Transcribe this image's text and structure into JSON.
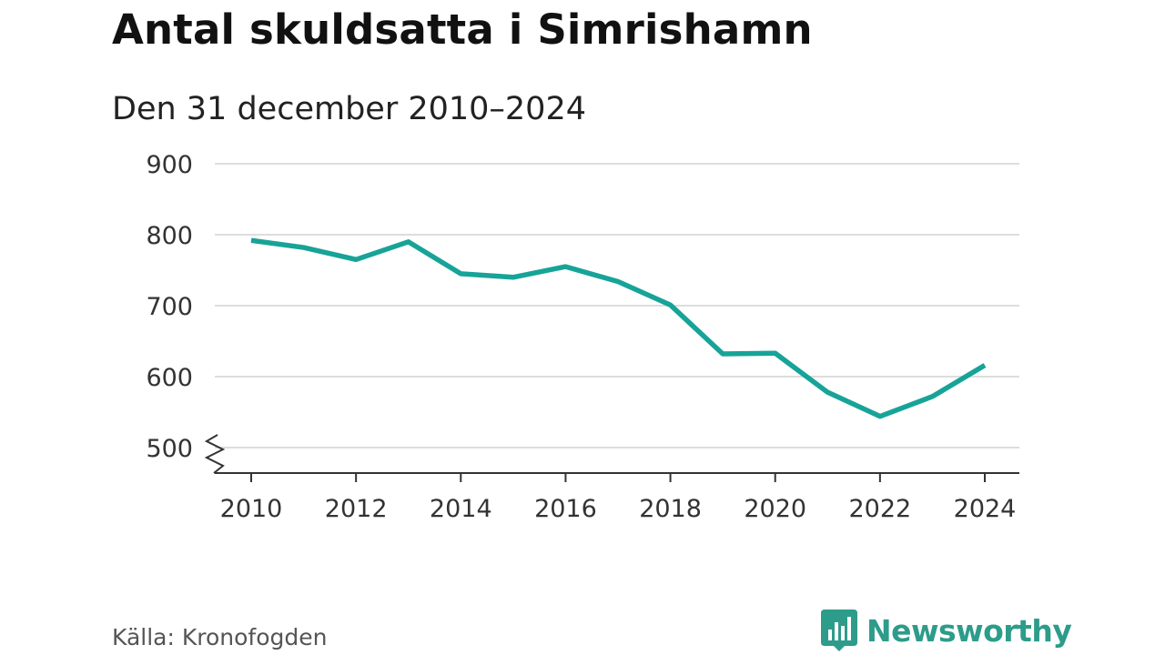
{
  "header": {
    "title": "Antal skuldsatta i Simrishamn",
    "subtitle": "Den 31 december 2010–2024"
  },
  "chart_data": {
    "type": "line",
    "title": "Antal skuldsatta i Simrishamn",
    "subtitle": "Den 31 december 2010–2024",
    "xlabel": "",
    "ylabel": "",
    "x": [
      2010,
      2011,
      2012,
      2013,
      2014,
      2015,
      2016,
      2017,
      2018,
      2019,
      2020,
      2021,
      2022,
      2023,
      2024
    ],
    "series": [
      {
        "values": [
          792,
          782,
          765,
          790,
          745,
          740,
          755,
          734,
          701,
          632,
          633,
          578,
          544,
          572,
          616
        ],
        "color": "#17a398"
      }
    ],
    "xticks": [
      "2010",
      "2012",
      "2014",
      "2016",
      "2018",
      "2020",
      "2022",
      "2024"
    ],
    "yticks": [
      "500",
      "600",
      "700",
      "800",
      "900"
    ],
    "xlim": [
      2010,
      2024
    ],
    "ylim": [
      500,
      900
    ],
    "y_axis_break": true,
    "grid": "horizontal"
  },
  "footer": {
    "source": "Källa: Kronofogden",
    "brand": "Newsworthy"
  },
  "colors": {
    "line": "#17a398",
    "brand": "#2d9c8a",
    "grid": "#dddddd",
    "axis": "#333333"
  }
}
